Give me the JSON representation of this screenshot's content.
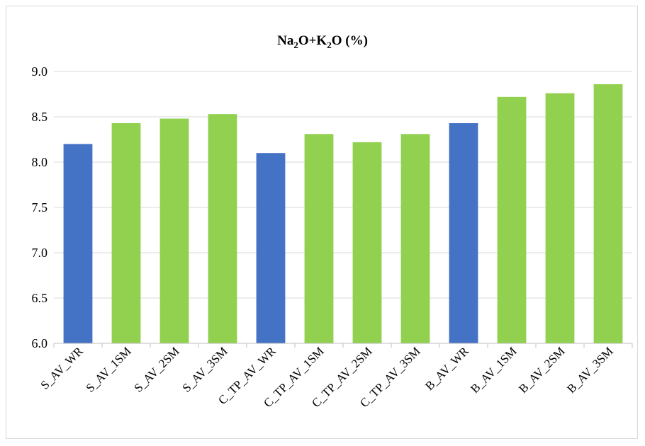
{
  "chart_data": {
    "type": "bar",
    "title_parts": [
      "Na",
      "2",
      "O+K",
      "2",
      "O (%)"
    ],
    "categories": [
      "S_AV_WR",
      "S_AV_1SM",
      "S_AV_2SM",
      "S_AV_3SM",
      "C_TP_AV_WR",
      "C_TP_AV_1SM",
      "C_TP_AV_2SM",
      "C_TP_AV_3SM",
      "B_AV_WR",
      "B_AV_1SM",
      "B_AV_2SM",
      "B_AV_3SM"
    ],
    "values": [
      8.2,
      8.43,
      8.48,
      8.53,
      8.1,
      8.31,
      8.22,
      8.31,
      8.43,
      8.72,
      8.76,
      8.86
    ],
    "bar_colors": [
      "#4472c4",
      "#92d050",
      "#92d050",
      "#92d050",
      "#4472c4",
      "#92d050",
      "#92d050",
      "#92d050",
      "#4472c4",
      "#92d050",
      "#92d050",
      "#92d050"
    ],
    "y_ticks": [
      "6.0",
      "6.5",
      "7.0",
      "7.5",
      "8.0",
      "8.5",
      "9.0"
    ],
    "ylim": [
      6.0,
      9.0
    ],
    "xlabel": "",
    "ylabel": "",
    "grid": true,
    "legend": "none",
    "gridline_color": "#d9d9d9",
    "axis_color": "#bfbfbf"
  }
}
